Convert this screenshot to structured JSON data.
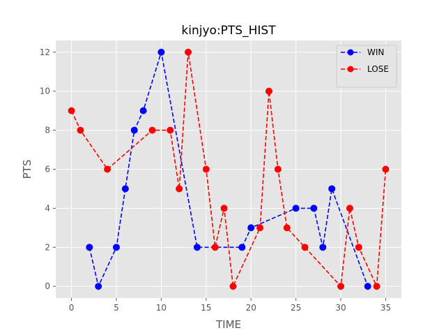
{
  "chart_data": {
    "type": "line",
    "title": "kinjyo:PTS_HIST",
    "xlabel": "TIME",
    "ylabel": "PTS",
    "xlim": [
      -1.75,
      36.75
    ],
    "ylim": [
      -0.6,
      12.6
    ],
    "xticks": [
      0,
      5,
      10,
      15,
      20,
      25,
      30,
      35
    ],
    "yticks": [
      0,
      2,
      4,
      6,
      8,
      10,
      12
    ],
    "grid": true,
    "legend_position": "top-right",
    "series": [
      {
        "name": "WIN",
        "color": "#0000ff",
        "line_style": "dashed",
        "marker": "circle",
        "x": [
          2,
          3,
          5,
          6,
          7,
          8,
          10,
          14,
          19,
          20,
          25,
          27,
          28,
          29,
          33
        ],
        "y": [
          2,
          0,
          2,
          5,
          8,
          9,
          12,
          2,
          2,
          3,
          4,
          4,
          2,
          5,
          0
        ]
      },
      {
        "name": "LOSE",
        "color": "#ff0000",
        "line_style": "dashed",
        "marker": "circle",
        "x": [
          0,
          1,
          4,
          9,
          11,
          12,
          13,
          15,
          16,
          17,
          18,
          21,
          22,
          23,
          24,
          26,
          30,
          31,
          32,
          34,
          35
        ],
        "y": [
          9,
          8,
          6,
          8,
          8,
          5,
          12,
          6,
          2,
          4,
          0,
          3,
          10,
          6,
          3,
          2,
          0,
          4,
          2,
          0,
          6
        ]
      }
    ]
  }
}
